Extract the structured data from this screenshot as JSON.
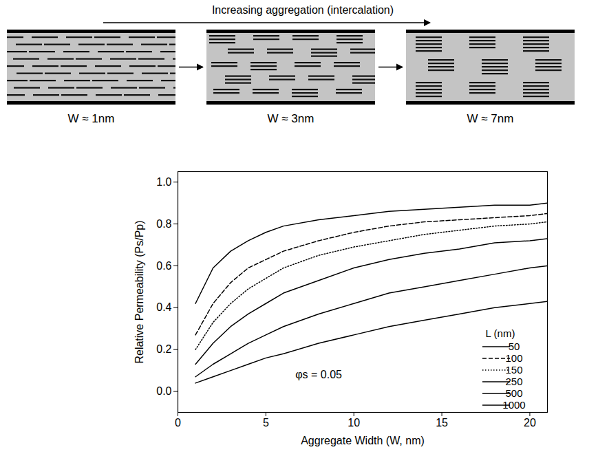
{
  "diagram": {
    "arrow_label": "Increasing aggregation (intercalation)",
    "panels": [
      "W ≈ 1nm",
      "W ≈ 3nm",
      "W ≈ 7nm"
    ]
  },
  "chart_data": {
    "type": "line",
    "xlabel": "Aggregate Width (W, nm)",
    "ylabel": "Relative Permeability (Ps/Pp)",
    "x": [
      1,
      2,
      3,
      4,
      5,
      6,
      8,
      10,
      12,
      14,
      16,
      18,
      20,
      21
    ],
    "series": [
      {
        "name": "50",
        "color": "#000000",
        "line_style": "solid",
        "values": [
          0.42,
          0.59,
          0.67,
          0.72,
          0.76,
          0.79,
          0.82,
          0.84,
          0.86,
          0.87,
          0.88,
          0.89,
          0.89,
          0.9
        ]
      },
      {
        "name": "100",
        "color": "#000000",
        "line_style": "dashed",
        "values": [
          0.27,
          0.42,
          0.52,
          0.59,
          0.63,
          0.67,
          0.72,
          0.76,
          0.79,
          0.81,
          0.82,
          0.83,
          0.84,
          0.85
        ]
      },
      {
        "name": "150",
        "color": "#000000",
        "line_style": "dotted",
        "values": [
          0.2,
          0.33,
          0.42,
          0.49,
          0.54,
          0.59,
          0.65,
          0.69,
          0.72,
          0.75,
          0.77,
          0.79,
          0.8,
          0.81
        ]
      },
      {
        "name": "250",
        "color": "#000000",
        "line_style": "solid",
        "values": [
          0.13,
          0.23,
          0.31,
          0.37,
          0.42,
          0.47,
          0.53,
          0.59,
          0.63,
          0.66,
          0.68,
          0.71,
          0.72,
          0.73
        ]
      },
      {
        "name": "500",
        "color": "#000000",
        "line_style": "solid",
        "values": [
          0.07,
          0.13,
          0.18,
          0.23,
          0.27,
          0.31,
          0.37,
          0.42,
          0.47,
          0.5,
          0.53,
          0.56,
          0.59,
          0.6
        ]
      },
      {
        "name": "1000",
        "color": "#000000",
        "line_style": "solid",
        "values": [
          0.04,
          0.07,
          0.1,
          0.13,
          0.16,
          0.18,
          0.23,
          0.27,
          0.31,
          0.34,
          0.37,
          0.4,
          0.42,
          0.43
        ]
      }
    ],
    "legend_title": "L (nm)",
    "legend": "bottom-right",
    "annotations": [
      {
        "text": "φs = 0.05",
        "x": 8,
        "y": 0.08
      }
    ],
    "xlim": [
      0,
      21
    ],
    "xticks": [
      0,
      5,
      10,
      15,
      20
    ],
    "ylim": [
      -0.1,
      1.05
    ],
    "yticks": [
      {
        "value": 0,
        "label": "0.0"
      },
      0.2,
      0.4,
      0.6,
      0.8,
      {
        "value": 1,
        "label": "1.0"
      }
    ],
    "grid": false
  }
}
